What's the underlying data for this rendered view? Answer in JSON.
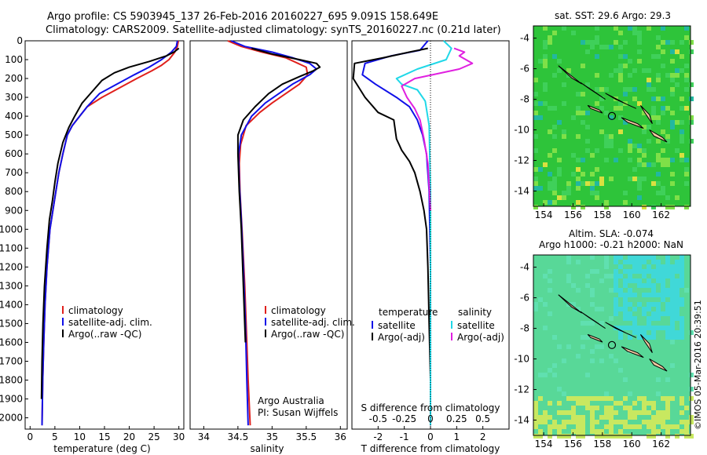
{
  "header": {
    "title_line1": "Argo profile: CS 5903945_137 26-Feb-2016 20160227_695 9.091S 158.649E",
    "title_line2": "Climatology: CARS2009. Satellite-adjusted climatology: synTS_20160227.nc (0.21d later)"
  },
  "credits": {
    "line1": "Argo Australia",
    "line2": "PI: Susan Wijffels"
  },
  "side_stamp": "©IMOS 05-Mar-2016 20:39:51",
  "colors": {
    "climatology": "#e0201c",
    "satellite": "#1010e8",
    "argo": "#000000",
    "salinity_satellite": "#20d8e8",
    "salinity_argo": "#e020e0",
    "land": "#f0c8a0",
    "sst_field": "#2ec43a",
    "sla_field": "#58d898"
  },
  "maps": {
    "sst": {
      "title": "sat. SST: 29.6 Argo: 29.3",
      "xticks": [
        "154",
        "156",
        "158",
        "160",
        "162"
      ],
      "yticks": [
        "-4",
        "-6",
        "-8",
        "-10",
        "-12",
        "-14"
      ],
      "argo_lon": 158.649,
      "argo_lat": -9.091
    },
    "sla": {
      "title_line1": "Altim. SLA: -0.074",
      "title_line2": "Argo h1000: -0.21 h2000: NaN",
      "xticks": [
        "154",
        "156",
        "158",
        "160",
        "162"
      ],
      "yticks": [
        "-4",
        "-6",
        "-8",
        "-10",
        "-12",
        "-14"
      ],
      "argo_lon": 158.649,
      "argo_lat": -9.091
    }
  },
  "chart_data": [
    {
      "type": "line",
      "panel": "temperature",
      "xlabel": "temperature (deg C)",
      "ylabel": "",
      "xlim": [
        -1,
        31
      ],
      "ylim": [
        2060,
        0
      ],
      "xticks": [
        "0",
        "5",
        "10",
        "15",
        "20",
        "25",
        "30"
      ],
      "yticks": [
        "0",
        "100",
        "200",
        "300",
        "400",
        "500",
        "600",
        "700",
        "800",
        "900",
        "1000",
        "1100",
        "1200",
        "1300",
        "1400",
        "1500",
        "1600",
        "1700",
        "1800",
        "1900",
        "2000"
      ],
      "legend": [
        "climatology",
        "satellite-adj. clim.",
        "Argo(..raw -QC)"
      ],
      "series": [
        {
          "name": "climatology",
          "color": "#e0201c",
          "x": [
            29.9,
            29.7,
            29.2,
            28.0,
            26.5,
            24.5,
            21.5,
            18.0,
            14.5,
            11.5,
            10.0,
            8.5,
            7.5,
            6.6,
            5.8,
            5.2,
            4.6,
            4.0,
            3.4,
            3.0,
            2.75,
            2.55,
            2.4
          ],
          "y": [
            0,
            30,
            60,
            100,
            130,
            160,
            200,
            250,
            300,
            350,
            400,
            450,
            500,
            600,
            700,
            800,
            900,
            1000,
            1200,
            1400,
            1600,
            1800,
            2040
          ]
        },
        {
          "name": "satellite-adj. clim.",
          "color": "#1010e8",
          "x": [
            29.7,
            29.5,
            28.5,
            26.5,
            24.0,
            21.0,
            17.5,
            14.0,
            11.5,
            10.0,
            8.5,
            7.5,
            6.6,
            5.8,
            5.2,
            4.6,
            4.0,
            3.4,
            3.0,
            2.75,
            2.55,
            2.4
          ],
          "y": [
            0,
            30,
            60,
            100,
            140,
            180,
            230,
            280,
            350,
            400,
            450,
            500,
            600,
            700,
            800,
            900,
            1000,
            1200,
            1400,
            1600,
            1800,
            2040
          ]
        },
        {
          "name": "Argo(..raw -QC)",
          "color": "#000000",
          "x": [
            30.0,
            29.0,
            27.5,
            24.0,
            20.0,
            17.0,
            14.5,
            12.5,
            10.5,
            9.0,
            7.8,
            6.6,
            5.6,
            5.0,
            4.5,
            3.9,
            3.4,
            2.9,
            2.6,
            2.4,
            2.3
          ],
          "y": [
            40,
            60,
            80,
            110,
            140,
            170,
            210,
            270,
            330,
            400,
            460,
            540,
            650,
            750,
            850,
            950,
            1100,
            1300,
            1500,
            1700,
            1900
          ]
        }
      ]
    },
    {
      "type": "line",
      "panel": "salinity",
      "xlabel": "salinity",
      "ylabel": "",
      "xlim": [
        33.8,
        36.1
      ],
      "ylim": [
        2060,
        0
      ],
      "xticks": [
        "34",
        "34.5",
        "35",
        "35.5",
        "36"
      ],
      "legend": [
        "climatology",
        "satellite-adj. clim.",
        "Argo(..raw -QC)"
      ],
      "series": [
        {
          "name": "climatology",
          "color": "#e0201c",
          "x": [
            34.35,
            34.55,
            34.85,
            35.2,
            35.5,
            35.52,
            35.4,
            35.2,
            35.0,
            34.82,
            34.62,
            34.54,
            34.52,
            34.53,
            34.56,
            34.6,
            34.63,
            34.65,
            34.68
          ],
          "y": [
            0,
            30,
            60,
            90,
            140,
            180,
            230,
            280,
            330,
            380,
            450,
            550,
            650,
            800,
            1000,
            1300,
            1600,
            1800,
            2040
          ]
        },
        {
          "name": "satellite-adj. clim.",
          "color": "#1010e8",
          "x": [
            34.4,
            34.6,
            35.0,
            35.3,
            35.55,
            35.65,
            35.55,
            35.3,
            35.1,
            34.9,
            34.7,
            34.55,
            34.51,
            34.52,
            34.55,
            34.58,
            34.61,
            34.63,
            34.65
          ],
          "y": [
            0,
            30,
            60,
            90,
            120,
            150,
            180,
            230,
            280,
            330,
            400,
            500,
            600,
            750,
            950,
            1200,
            1500,
            1800,
            2040
          ]
        },
        {
          "name": "Argo(..raw -QC)",
          "color": "#000000",
          "x": [
            34.7,
            35.0,
            35.4,
            35.65,
            35.7,
            35.6,
            35.4,
            35.15,
            34.95,
            34.75,
            34.58,
            34.5,
            34.5,
            34.52,
            34.55,
            34.58,
            34.61
          ],
          "y": [
            40,
            70,
            100,
            120,
            140,
            160,
            190,
            230,
            280,
            350,
            420,
            500,
            600,
            800,
            1000,
            1300,
            1600
          ]
        }
      ]
    },
    {
      "type": "line",
      "panel": "differences",
      "xlabel": "T difference from climatology",
      "xlabel_top": "S difference from climatology",
      "xlim": [
        -3,
        3
      ],
      "ylim": [
        2060,
        0
      ],
      "xticks_T": [
        "-2",
        "-1",
        "0",
        "1",
        "2"
      ],
      "xticks_S": [
        "-0.5",
        "-0.25",
        "0",
        "0.25",
        "0.5"
      ],
      "legend_headers": [
        "temperature",
        "salinity"
      ],
      "legend": [
        "satellite",
        "Argo(-adj)",
        "satellite",
        "Argo(-adj)"
      ],
      "series": [
        {
          "name": "satellite",
          "group": "temperature",
          "color": "#1010e8",
          "x": [
            -0.1,
            -0.4,
            -1.5,
            -2.5,
            -2.6,
            -2.1,
            -1.3,
            -0.8,
            -0.5,
            -0.3,
            -0.15,
            -0.05,
            0.0,
            0.0
          ],
          "y": [
            0,
            50,
            80,
            120,
            180,
            230,
            300,
            350,
            420,
            500,
            600,
            800,
            1200,
            2040
          ]
        },
        {
          "name": "Argo(-adj)",
          "group": "temperature",
          "color": "#000000",
          "x": [
            -0.1,
            -0.8,
            -1.8,
            -2.9,
            -2.95,
            -2.5,
            -2.0,
            -1.4,
            -1.3,
            -1.1,
            -0.8,
            -0.6,
            -0.4,
            -0.25,
            -0.15,
            -0.1,
            -0.05,
            0.0
          ],
          "y": [
            40,
            60,
            90,
            120,
            200,
            300,
            380,
            420,
            520,
            580,
            640,
            700,
            800,
            900,
            1000,
            1200,
            1500,
            1800
          ]
        },
        {
          "name": "satellite",
          "group": "salinity",
          "color": "#20d8e8",
          "x": [
            0.5,
            0.8,
            0.6,
            -0.5,
            -1.3,
            -1.1,
            -0.5,
            -0.2,
            -0.05,
            0.0,
            0.0
          ],
          "y": [
            0,
            40,
            100,
            150,
            200,
            230,
            260,
            320,
            450,
            800,
            2040
          ]
        },
        {
          "name": "Argo(-adj)",
          "group": "salinity",
          "color": "#e020e0",
          "x": [
            0.9,
            1.3,
            1.1,
            1.6,
            1.1,
            -0.6,
            -1.1,
            -0.9,
            -0.6,
            -0.4,
            -0.25,
            -0.1,
            0.0
          ],
          "y": [
            40,
            60,
            80,
            120,
            150,
            200,
            240,
            300,
            360,
            420,
            520,
            650,
            900
          ]
        }
      ]
    }
  ]
}
